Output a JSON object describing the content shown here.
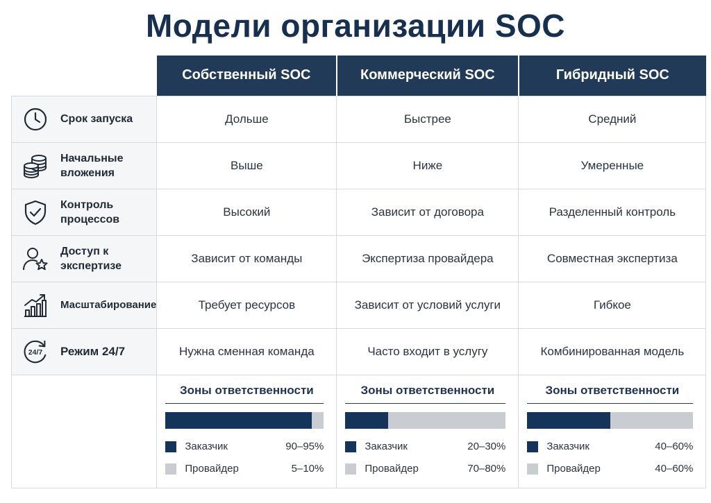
{
  "title": "Модели организации SOC",
  "columns": [
    "Собственный SOC",
    "Коммерческий SOC",
    "Гибридный SOC"
  ],
  "rows": [
    {
      "label": "Срок запуска",
      "icon": "clock-icon",
      "values": [
        "Дольше",
        "Быстрее",
        "Средний"
      ]
    },
    {
      "label": "Начальные\nвложения",
      "icon": "coins-stack-icon",
      "values": [
        "Выше",
        "Ниже",
        "Умеренные"
      ]
    },
    {
      "label": "Контроль\nпроцессов",
      "icon": "shield-check-icon",
      "values": [
        "Высокий",
        "Зависит от договора",
        "Разделенный контроль"
      ]
    },
    {
      "label": "Доступ к\nэкспертизе",
      "icon": "user-star-icon",
      "values": [
        "Зависит от команды",
        "Экспертиза провайдера",
        "Совместная экспертиза"
      ]
    },
    {
      "label": "Масштабирование",
      "icon": "growth-chart-icon",
      "values": [
        "Требует ресурсов",
        "Зависит от условий услуги",
        "Гибкое"
      ]
    },
    {
      "label": "Режим 24/7",
      "icon": "clock-24-7-icon",
      "values": [
        "Нужна сменная команда",
        "Часто входит в услугу",
        "Комбинированная модель"
      ]
    }
  ],
  "zones": {
    "title": "Зоны ответственности",
    "customer_label": "Заказчик",
    "provider_label": "Провайдер",
    "customer_color": "#15345a",
    "provider_color": "#c9ccd1",
    "items": [
      {
        "customer_range": "90–95%",
        "provider_range": "5–10%",
        "customer_share": 0.925
      },
      {
        "customer_range": "20–30%",
        "provider_range": "70–80%",
        "customer_share": 0.265
      },
      {
        "customer_range": "40–60%",
        "provider_range": "40–60%",
        "customer_share": 0.5
      }
    ]
  }
}
